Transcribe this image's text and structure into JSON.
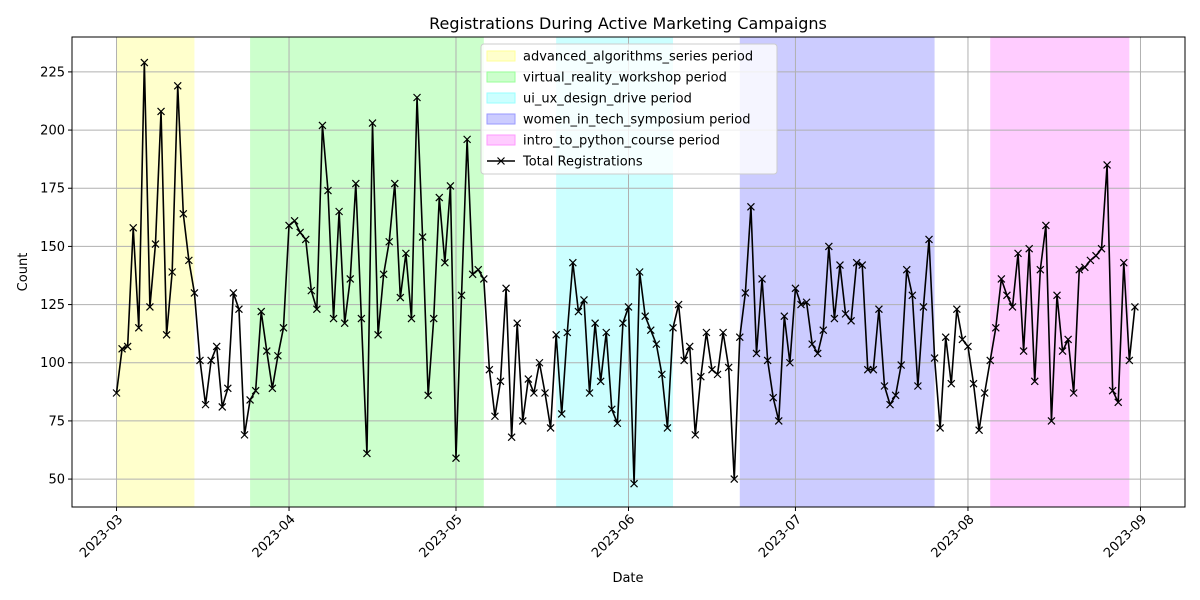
{
  "chart_data": {
    "type": "line",
    "title": "Registrations During Active Marketing Campaigns",
    "xlabel": "Date",
    "ylabel": "Count",
    "xlim": [
      "2023-02-21",
      "2023-09-09"
    ],
    "ylim": [
      38,
      240
    ],
    "grid": true,
    "legend_position": "upper-center",
    "x_ticks": [
      "2023-03",
      "2023-04",
      "2023-05",
      "2023-06",
      "2023-07",
      "2023-08",
      "2023-09"
    ],
    "x_tick_dates": [
      "2023-03-01",
      "2023-04-01",
      "2023-05-01",
      "2023-06-01",
      "2023-07-01",
      "2023-08-01",
      "2023-09-01"
    ],
    "y_ticks": [
      50,
      75,
      100,
      125,
      150,
      175,
      200,
      225
    ],
    "campaigns": [
      {
        "name": "advanced_algorithms_series period",
        "start": "2023-03-01",
        "end": "2023-03-15",
        "color": "#ffff99"
      },
      {
        "name": "virtual_reality_workshop period",
        "start": "2023-03-25",
        "end": "2023-05-06",
        "color": "#99ff99"
      },
      {
        "name": "ui_ux_design_drive period",
        "start": "2023-05-19",
        "end": "2023-06-09",
        "color": "#99ffff"
      },
      {
        "name": "women_in_tech_symposium period",
        "start": "2023-06-21",
        "end": "2023-07-26",
        "color": "#9999ff"
      },
      {
        "name": "intro_to_python_course period",
        "start": "2023-08-05",
        "end": "2023-08-30",
        "color": "#ff99ff"
      }
    ],
    "series": [
      {
        "name": "Total Registrations",
        "color": "#000000",
        "marker": "x",
        "start_date": "2023-03-01",
        "values": [
          87,
          106,
          107,
          158,
          115,
          229,
          124,
          151,
          208,
          112,
          139,
          219,
          164,
          144,
          130,
          101,
          82,
          101,
          107,
          81,
          89,
          130,
          123,
          69,
          84,
          88,
          122,
          105,
          89,
          103,
          115,
          159,
          161,
          156,
          153,
          131,
          123,
          202,
          174,
          119,
          165,
          117,
          136,
          177,
          119,
          61,
          203,
          112,
          138,
          152,
          177,
          128,
          147,
          119,
          214,
          154,
          86,
          119,
          171,
          143,
          176,
          59,
          129,
          196,
          138,
          140,
          136,
          97,
          77,
          92,
          132,
          68,
          117,
          75,
          93,
          87,
          100,
          87,
          72,
          112,
          78,
          113,
          143,
          122,
          127,
          87,
          117,
          92,
          113,
          80,
          74,
          117,
          124,
          48,
          139,
          120,
          114,
          108,
          95,
          72,
          115,
          125,
          101,
          107,
          69,
          94,
          113,
          97,
          95,
          113,
          98,
          50,
          111,
          130,
          167,
          104,
          136,
          101,
          85,
          75,
          120,
          100,
          132,
          125,
          126,
          108,
          104,
          114,
          150,
          119,
          142,
          121,
          118,
          143,
          142,
          97,
          97,
          123,
          90,
          82,
          86,
          99,
          140,
          129,
          90,
          124,
          153,
          102,
          72,
          111,
          91,
          123,
          110,
          107,
          91,
          71,
          87,
          101,
          115,
          136,
          129,
          124,
          147,
          105,
          149,
          92,
          140,
          159,
          75,
          129,
          105,
          110,
          87,
          140,
          141,
          144,
          146,
          149,
          185,
          88,
          83,
          143,
          101,
          124
        ]
      }
    ]
  }
}
